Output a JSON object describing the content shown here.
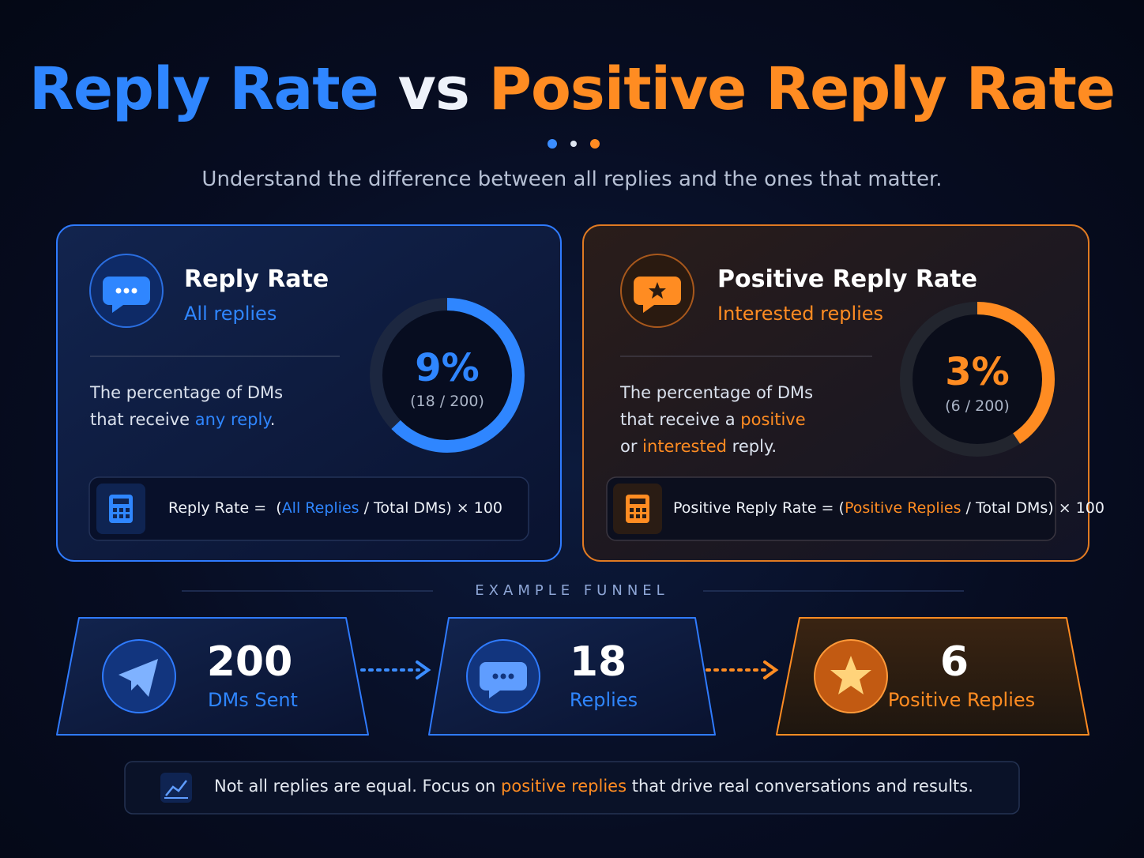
{
  "header": {
    "title_left": "Reply Rate",
    "title_mid": "vs",
    "title_right": "Positive Reply Rate",
    "subtitle": "Understand the difference between all replies and the ones that matter."
  },
  "cards": [
    {
      "title": "Reply Rate",
      "subtitle": "All replies",
      "description": [
        {
          "text": "The percentage of DMs that receive ",
          "highlight": false
        },
        {
          "text": "any reply",
          "highlight": true
        },
        {
          "text": ".",
          "highlight": false
        }
      ],
      "percent": "9%",
      "ratio": "(18 / 200)",
      "formula": [
        {
          "text": "Reply Rate =  (",
          "highlight": false
        },
        {
          "text": "All Replies",
          "highlight": true
        },
        {
          "text": " / Total DMs) × 100",
          "highlight": false
        }
      ]
    },
    {
      "title": "Positive Reply Rate",
      "subtitle": "Interested replies",
      "description": [
        {
          "text": "The percentage of DMs that receive a ",
          "highlight": false
        },
        {
          "text": "positive",
          "highlight": true
        },
        {
          "text": " or ",
          "highlight": false
        },
        {
          "text": "interested",
          "highlight": true
        },
        {
          "text": " reply.",
          "highlight": false
        }
      ],
      "percent": "3%",
      "ratio": "(6 / 200)",
      "formula": [
        {
          "text": "Positive Reply Rate = (",
          "highlight": false
        },
        {
          "text": "Positive Replies",
          "highlight": true
        },
        {
          "text": " / Total DMs) × 100",
          "highlight": false
        }
      ]
    }
  ],
  "section_label": "EXAMPLE FUNNEL",
  "funnel": [
    {
      "value": 200,
      "label": "DMs Sent"
    },
    {
      "value": 18,
      "label": "Replies"
    },
    {
      "value": 6,
      "label": "Positive Replies"
    }
  ],
  "footer": [
    {
      "text": "Not all replies are equal. Focus on ",
      "highlight": false
    },
    {
      "text": "positive replies",
      "highlight": true
    },
    {
      "text": " that drive real conversations and results.",
      "highlight": false
    }
  ]
}
